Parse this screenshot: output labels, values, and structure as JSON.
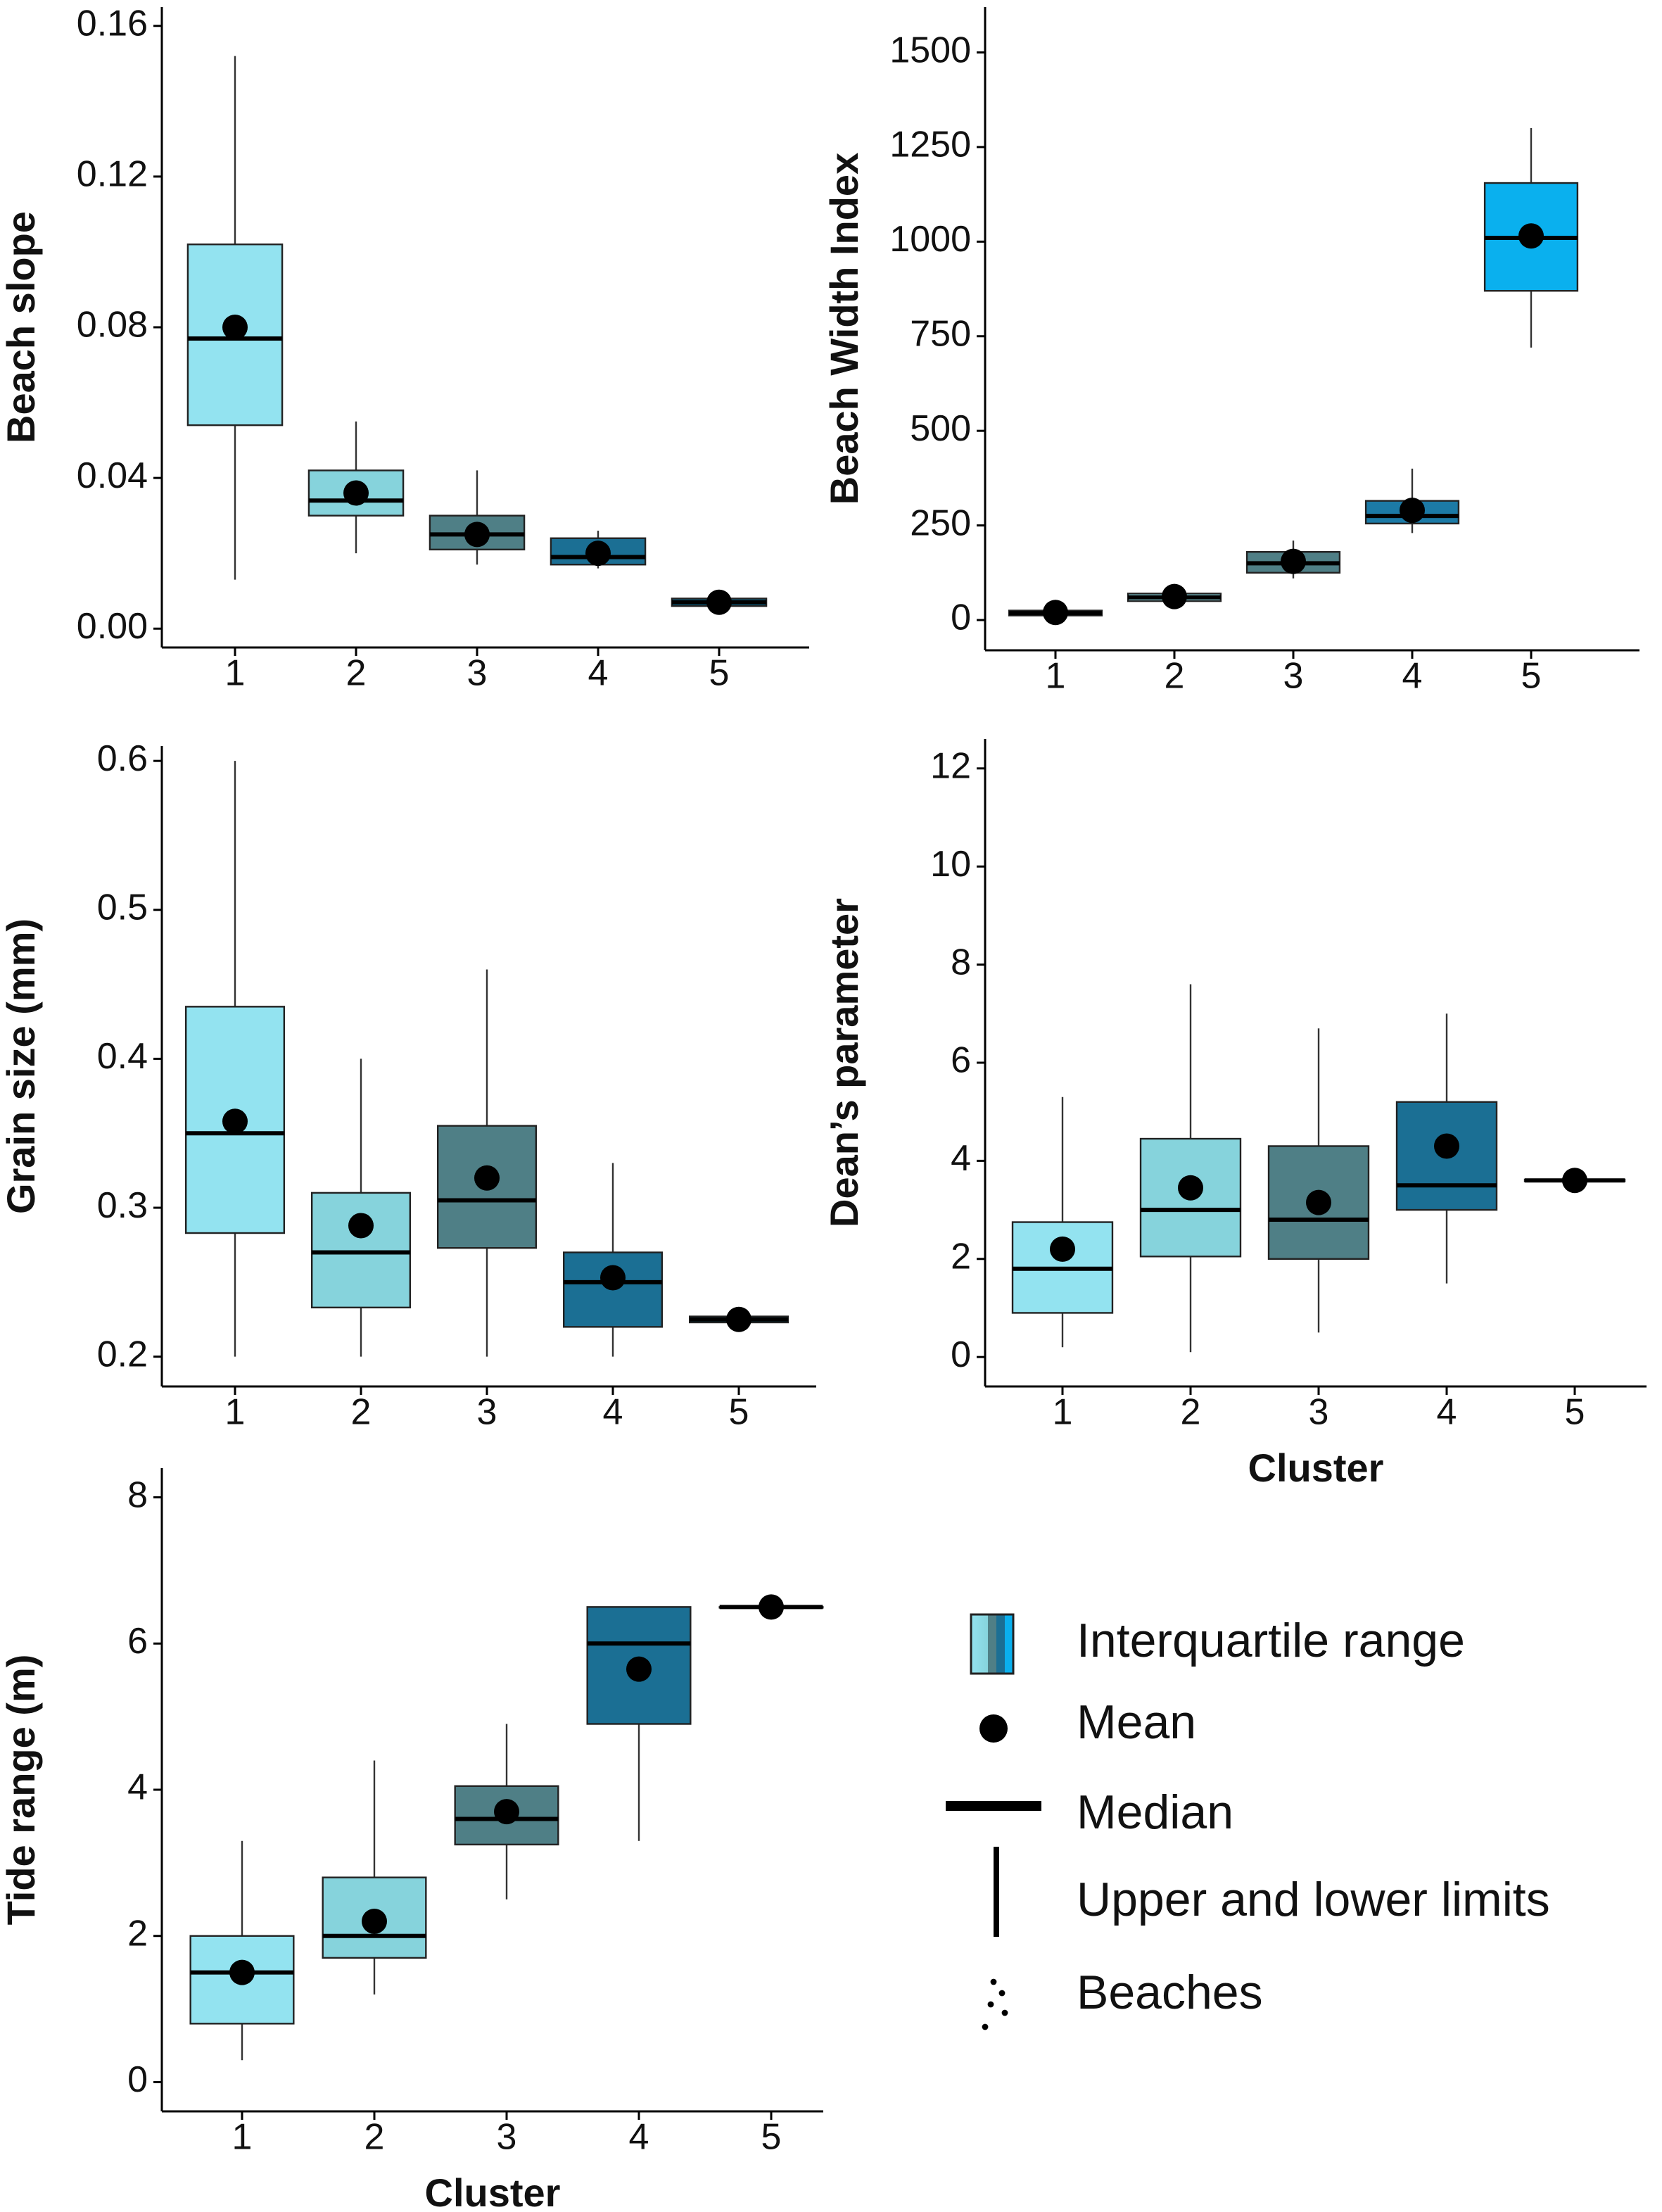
{
  "chart_data": [
    {
      "type": "box",
      "ylabel": "Beach slope",
      "categories": [
        "1",
        "2",
        "3",
        "4",
        "5"
      ],
      "ylim": [
        -0.005,
        0.165
      ],
      "yticks": [
        {
          "value": 0,
          "label": "0.00"
        },
        0.04,
        0.08,
        0.12,
        0.16
      ],
      "boxes": [
        {
          "color": "#93e3f0",
          "min": 0.013,
          "q1": 0.054,
          "median": 0.077,
          "q3": 0.102,
          "max": 0.152,
          "mean": 0.08
        },
        {
          "color": "#86d3dc",
          "min": 0.02,
          "q1": 0.03,
          "median": 0.034,
          "q3": 0.042,
          "max": 0.055,
          "mean": 0.036
        },
        {
          "color": "#4f7f86",
          "min": 0.017,
          "q1": 0.021,
          "median": 0.025,
          "q3": 0.03,
          "max": 0.042,
          "mean": 0.025
        },
        {
          "color": "#1b6f94",
          "min": 0.016,
          "q1": 0.017,
          "median": 0.019,
          "q3": 0.024,
          "max": 0.026,
          "mean": 0.02
        },
        {
          "color": "#0b5f80",
          "min": 0.006,
          "q1": 0.006,
          "median": 0.007,
          "q3": 0.008,
          "max": 0.008,
          "mean": 0.007
        }
      ]
    },
    {
      "type": "box",
      "ylabel": "Beach Width Index",
      "categories": [
        "1",
        "2",
        "3",
        "4",
        "5"
      ],
      "ylim": [
        -80,
        1620
      ],
      "yticks": [
        0,
        250,
        500,
        750,
        1000,
        1250,
        1500
      ],
      "boxes": [
        {
          "color": "#93e3f0",
          "min": 5,
          "q1": 12,
          "median": 18,
          "q3": 25,
          "max": 40,
          "mean": 20
        },
        {
          "color": "#86d3dc",
          "min": 40,
          "q1": 50,
          "median": 60,
          "q3": 70,
          "max": 95,
          "mean": 62
        },
        {
          "color": "#4f7f86",
          "min": 110,
          "q1": 125,
          "median": 150,
          "q3": 180,
          "max": 210,
          "mean": 155
        },
        {
          "color": "#1c7aa6",
          "min": 230,
          "q1": 255,
          "median": 275,
          "q3": 315,
          "max": 400,
          "mean": 290
        },
        {
          "color": "#0ab0ee",
          "min": 720,
          "q1": 870,
          "median": 1010,
          "q3": 1155,
          "max": 1300,
          "mean": 1015
        }
      ]
    },
    {
      "type": "box",
      "ylabel": "Grain size (mm)",
      "categories": [
        "1",
        "2",
        "3",
        "4",
        "5"
      ],
      "ylim": [
        0.18,
        0.61
      ],
      "yticks": [
        0.2,
        0.3,
        0.4,
        0.5,
        0.6
      ],
      "boxes": [
        {
          "color": "#93e3f0",
          "min": 0.2,
          "q1": 0.283,
          "median": 0.35,
          "q3": 0.435,
          "max": 0.6,
          "mean": 0.358
        },
        {
          "color": "#86d3dc",
          "min": 0.2,
          "q1": 0.233,
          "median": 0.27,
          "q3": 0.31,
          "max": 0.4,
          "mean": 0.288
        },
        {
          "color": "#4f7f86",
          "min": 0.2,
          "q1": 0.273,
          "median": 0.305,
          "q3": 0.355,
          "max": 0.46,
          "mean": 0.32
        },
        {
          "color": "#1b6f94",
          "min": 0.2,
          "q1": 0.22,
          "median": 0.25,
          "q3": 0.27,
          "max": 0.33,
          "mean": 0.253
        },
        {
          "color": "#0b5f80",
          "min": 0.222,
          "q1": 0.223,
          "median": 0.225,
          "q3": 0.227,
          "max": 0.228,
          "mean": 0.225
        }
      ]
    },
    {
      "type": "box",
      "ylabel": "Dean’s parameter",
      "xlabel": "Cluster",
      "categories": [
        "1",
        "2",
        "3",
        "4",
        "5"
      ],
      "ylim": [
        -0.6,
        12.6
      ],
      "yticks": [
        0,
        2,
        4,
        6,
        8,
        10,
        12
      ],
      "boxes": [
        {
          "color": "#93e3f0",
          "min": 0.2,
          "q1": 0.9,
          "median": 1.8,
          "q3": 2.75,
          "max": 5.3,
          "mean": 2.2
        },
        {
          "color": "#86d3dc",
          "min": 0.1,
          "q1": 2.05,
          "median": 3.0,
          "q3": 4.45,
          "max": 7.6,
          "mean": 3.45
        },
        {
          "color": "#4f7f86",
          "min": 0.5,
          "q1": 2.0,
          "median": 2.8,
          "q3": 4.3,
          "max": 6.7,
          "mean": 3.15
        },
        {
          "color": "#1b6f94",
          "min": 1.5,
          "q1": 3.0,
          "median": 3.5,
          "q3": 5.2,
          "max": 7.0,
          "mean": 4.3
        },
        {
          "color": "#0b5f80",
          "min": 3.55,
          "q1": 3.58,
          "median": 3.6,
          "q3": 3.62,
          "max": 3.65,
          "mean": 3.6
        }
      ]
    },
    {
      "type": "box",
      "ylabel": "Tide range (m)",
      "xlabel": "Cluster",
      "categories": [
        "1",
        "2",
        "3",
        "4",
        "5"
      ],
      "ylim": [
        -0.4,
        8.4
      ],
      "yticks": [
        0,
        2,
        4,
        6,
        8
      ],
      "boxes": [
        {
          "color": "#93e3f0",
          "min": 0.3,
          "q1": 0.8,
          "median": 1.5,
          "q3": 2.0,
          "max": 3.3,
          "mean": 1.5
        },
        {
          "color": "#86d3dc",
          "min": 1.2,
          "q1": 1.7,
          "median": 2.0,
          "q3": 2.8,
          "max": 4.4,
          "mean": 2.2
        },
        {
          "color": "#4f7f86",
          "min": 2.5,
          "q1": 3.25,
          "median": 3.6,
          "q3": 4.05,
          "max": 4.9,
          "mean": 3.7
        },
        {
          "color": "#1b6f94",
          "min": 3.3,
          "q1": 4.9,
          "median": 6.0,
          "q3": 6.5,
          "max": 6.5,
          "mean": 5.65
        },
        {
          "color": "#0b5f80",
          "min": 6.5,
          "q1": 6.5,
          "median": 6.5,
          "q3": 6.5,
          "max": 6.5,
          "mean": 6.5
        }
      ]
    }
  ],
  "legend": [
    "Interquartile range",
    "Mean",
    "Median",
    "Upper and lower limits",
    "Beaches"
  ]
}
